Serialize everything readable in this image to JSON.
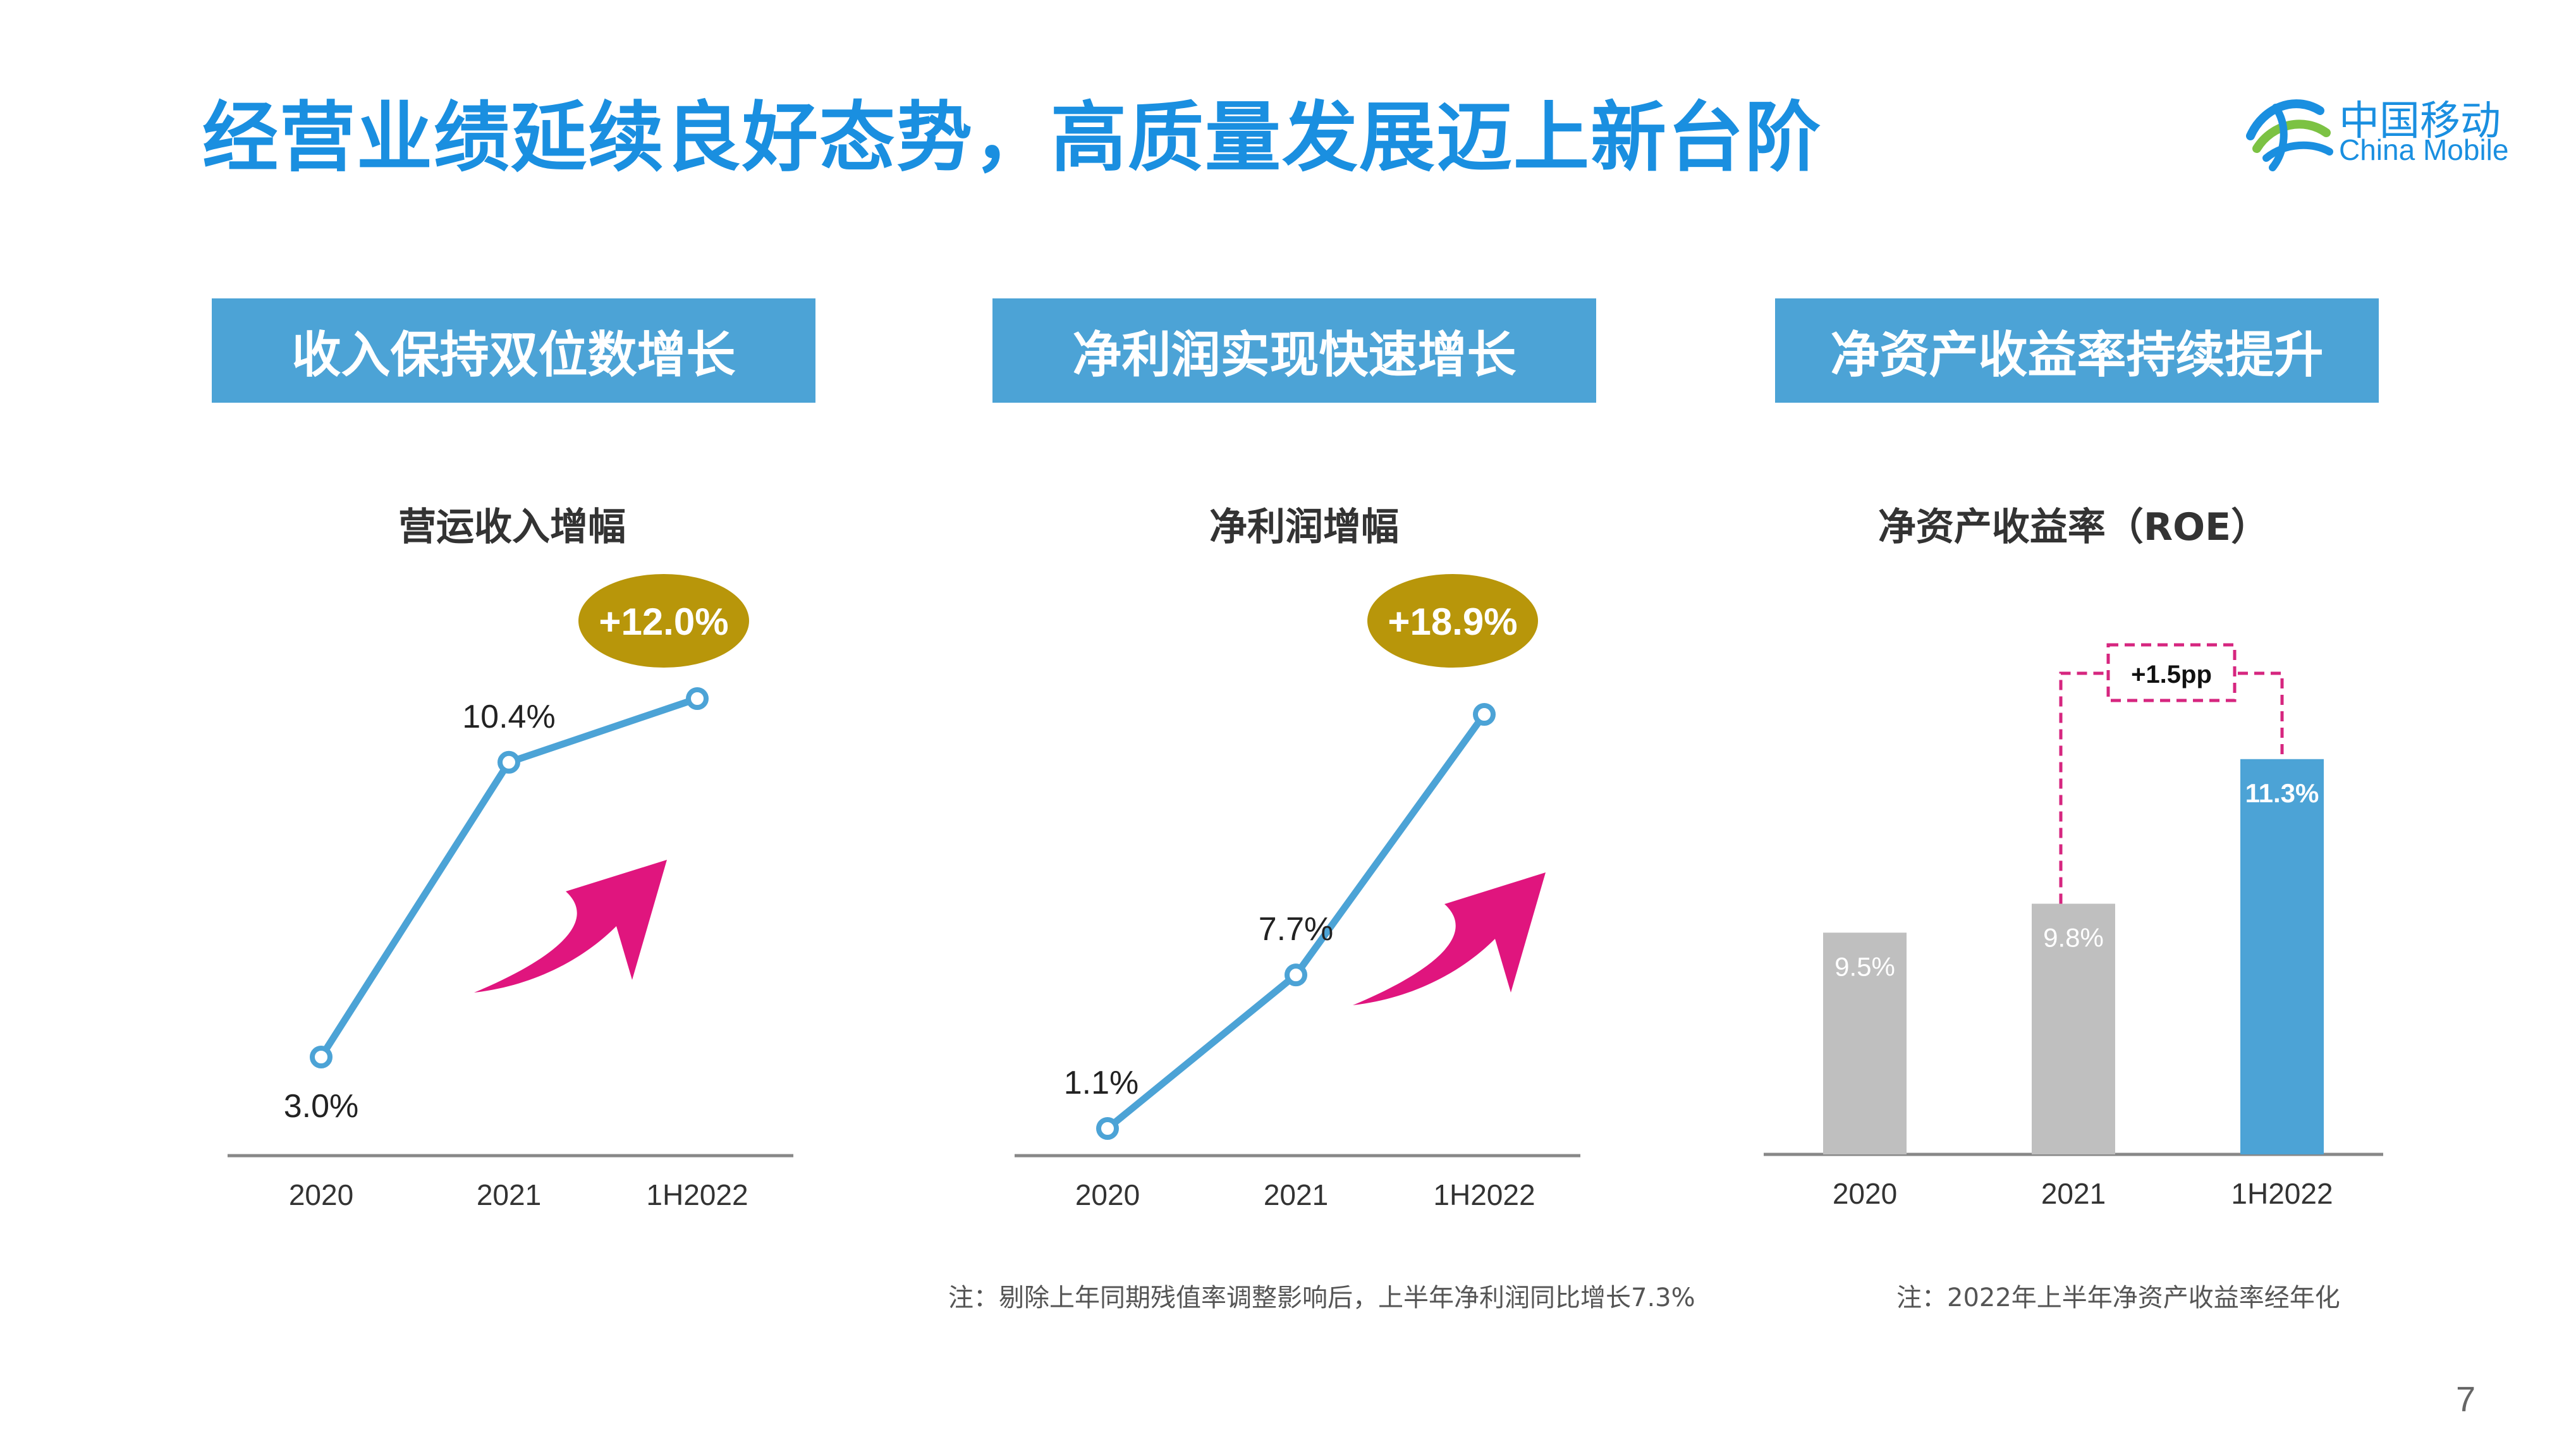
{
  "title": "经营业绩延续良好态势，高质量发展迈上新台阶",
  "logo": {
    "cn": "中国移动",
    "en": "China Mobile"
  },
  "banners": [
    "收入保持双位数增长",
    "净利润实现快速增长",
    "净资产收益率持续提升"
  ],
  "charts": {
    "revenue": {
      "title": "营运收入增幅",
      "badge": "+12.0%"
    },
    "profit": {
      "title": "净利润增幅",
      "badge": "+18.9%"
    },
    "roe": {
      "title": "净资产收益率（ROE）",
      "diff": "+1.5pp"
    }
  },
  "notes": {
    "profit": "注：剔除上年同期残值率调整影响后，上半年净利润同比增长7.3%",
    "roe": "注：2022年上半年净资产收益率经年化"
  },
  "page_number": "7",
  "colors": {
    "title": "#1a8fe0",
    "banner": "#4ca3d6",
    "line": "#4ca3d6",
    "badge": "#b8960a",
    "arrow": "#e0157e",
    "bar_gray": "#bfbfbf",
    "bar_blue": "#4ca3d6",
    "callout": "#d6267f"
  },
  "chart_data": [
    {
      "type": "line",
      "title": "营运收入增幅",
      "categories": [
        "2020",
        "2021",
        "1H2022"
      ],
      "series": [
        {
          "values": [
            3.0,
            10.4,
            12.0
          ],
          "labels": [
            "3.0%",
            "10.4%",
            ""
          ]
        }
      ]
    },
    {
      "type": "line",
      "title": "净利润增幅",
      "categories": [
        "2020",
        "2021",
        "1H2022"
      ],
      "series": [
        {
          "values": [
            1.1,
            7.7,
            18.9
          ],
          "labels": [
            "1.1%",
            "7.7%",
            ""
          ]
        }
      ]
    },
    {
      "type": "bar",
      "title": "净资产收益率（ROE）",
      "categories": [
        "2020",
        "2021",
        "1H2022"
      ],
      "values": [
        9.5,
        9.8,
        11.3
      ],
      "labels": [
        "9.5%",
        "9.8%",
        "11.3%"
      ]
    }
  ]
}
